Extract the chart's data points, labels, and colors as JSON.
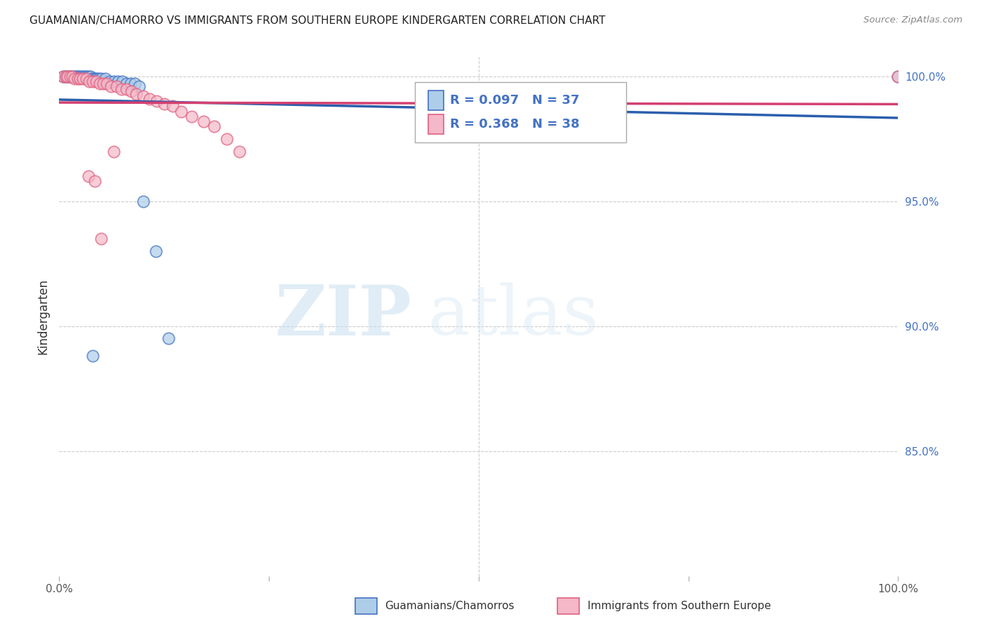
{
  "title": "GUAMANIAN/CHAMORRO VS IMMIGRANTS FROM SOUTHERN EUROPE KINDERGARTEN CORRELATION CHART",
  "source": "Source: ZipAtlas.com",
  "ylabel": "Kindergarten",
  "xlim": [
    0.0,
    1.0
  ],
  "ylim": [
    0.8,
    1.008
  ],
  "yticks": [
    0.85,
    0.9,
    0.95,
    1.0
  ],
  "ytick_labels": [
    "85.0%",
    "90.0%",
    "95.0%",
    "100.0%"
  ],
  "xticks": [
    0.0,
    0.25,
    0.5,
    0.75,
    1.0
  ],
  "xtick_labels": [
    "0.0%",
    "",
    "",
    "",
    "100.0%"
  ],
  "blue_R": 0.097,
  "blue_N": 37,
  "pink_R": 0.368,
  "pink_N": 38,
  "blue_color": "#aecde8",
  "pink_color": "#f4b8c8",
  "blue_edge_color": "#4472c4",
  "pink_edge_color": "#e06080",
  "blue_line_color": "#2b5fad",
  "pink_line_color": "#d44070",
  "legend_label_blue": "Guamanians/Chamorros",
  "legend_label_pink": "Immigrants from Southern Europe",
  "watermark_zip": "ZIP",
  "watermark_atlas": "atlas",
  "background_color": "#ffffff",
  "grid_color": "#cccccc",
  "title_color": "#222222",
  "ytick_color": "#4472c4",
  "source_color": "#888888",
  "blue_x": [
    0.005,
    0.007,
    0.009,
    0.011,
    0.013,
    0.015,
    0.017,
    0.019,
    0.021,
    0.023,
    0.025,
    0.027,
    0.029,
    0.031,
    0.033,
    0.035,
    0.037,
    0.039,
    0.041,
    0.043,
    0.045,
    0.047,
    0.05,
    0.055,
    0.06,
    0.065,
    0.07,
    0.075,
    0.08,
    0.085,
    0.09,
    0.095,
    0.1,
    0.115,
    0.13,
    0.04,
    1.0
  ],
  "blue_y": [
    1.0,
    1.0,
    1.0,
    1.0,
    1.0,
    1.0,
    1.0,
    1.0,
    1.0,
    1.0,
    1.0,
    1.0,
    1.0,
    1.0,
    1.0,
    1.0,
    1.0,
    0.999,
    0.999,
    0.999,
    0.999,
    0.999,
    0.999,
    0.999,
    0.998,
    0.998,
    0.998,
    0.998,
    0.997,
    0.997,
    0.997,
    0.996,
    0.95,
    0.93,
    0.895,
    0.888,
    1.0
  ],
  "pink_x": [
    0.005,
    0.008,
    0.01,
    0.013,
    0.016,
    0.018,
    0.022,
    0.025,
    0.028,
    0.032,
    0.036,
    0.04,
    0.044,
    0.048,
    0.052,
    0.057,
    0.062,
    0.068,
    0.074,
    0.08,
    0.086,
    0.092,
    0.1,
    0.108,
    0.116,
    0.125,
    0.135,
    0.145,
    0.158,
    0.172,
    0.185,
    0.2,
    0.215,
    0.035,
    0.042,
    0.05,
    0.065,
    1.0
  ],
  "pink_y": [
    1.0,
    1.0,
    1.0,
    1.0,
    1.0,
    0.999,
    0.999,
    0.999,
    0.999,
    0.999,
    0.998,
    0.998,
    0.998,
    0.997,
    0.997,
    0.997,
    0.996,
    0.996,
    0.995,
    0.995,
    0.994,
    0.993,
    0.992,
    0.991,
    0.99,
    0.989,
    0.988,
    0.986,
    0.984,
    0.982,
    0.98,
    0.975,
    0.97,
    0.96,
    0.958,
    0.935,
    0.97,
    1.0
  ]
}
